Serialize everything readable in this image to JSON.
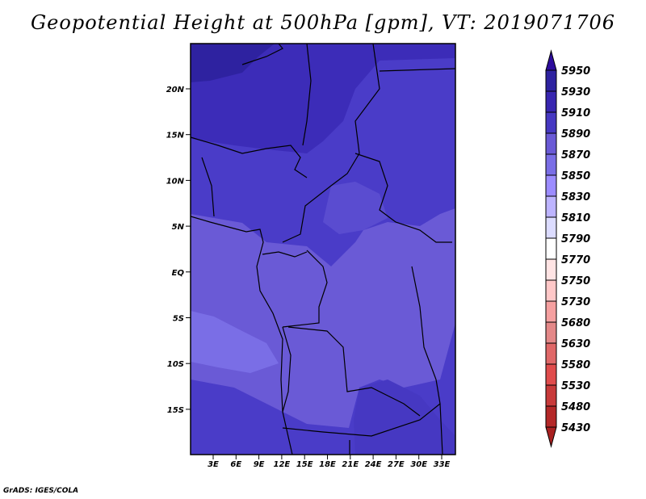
{
  "title": "Geopotential Height at 500hPa [gpm], VT: 2019071706",
  "footer": "GrADS: IGES/COLA",
  "lat_labels": [
    "20N",
    "15N",
    "10N",
    "5N",
    "EQ",
    "5S",
    "10S",
    "15S"
  ],
  "lon_labels": [
    "3E",
    "6E",
    "9E",
    "12E",
    "15E",
    "18E",
    "21E",
    "24E",
    "27E",
    "30E",
    "33E"
  ],
  "colorbar": {
    "labels": [
      "5950",
      "5930",
      "5910",
      "5890",
      "5870",
      "5850",
      "5830",
      "5810",
      "5790",
      "5770",
      "5750",
      "5730",
      "5680",
      "5630",
      "5580",
      "5530",
      "5480",
      "5430"
    ],
    "top_arrow_color": "#2d0c9c",
    "bottom_arrow_color": "#a82020",
    "colors": [
      "#2e22a0",
      "#3826b0",
      "#4638c2",
      "#6a5ad6",
      "#7a6ee6",
      "#9c8cff",
      "#bdb4ff",
      "#dcdcff",
      "#ffffff",
      "#ffe4e4",
      "#ffc8c8",
      "#f5a0a0",
      "#e48888",
      "#e06868",
      "#e04c4c",
      "#c83a3a",
      "#b42828"
    ]
  }
}
